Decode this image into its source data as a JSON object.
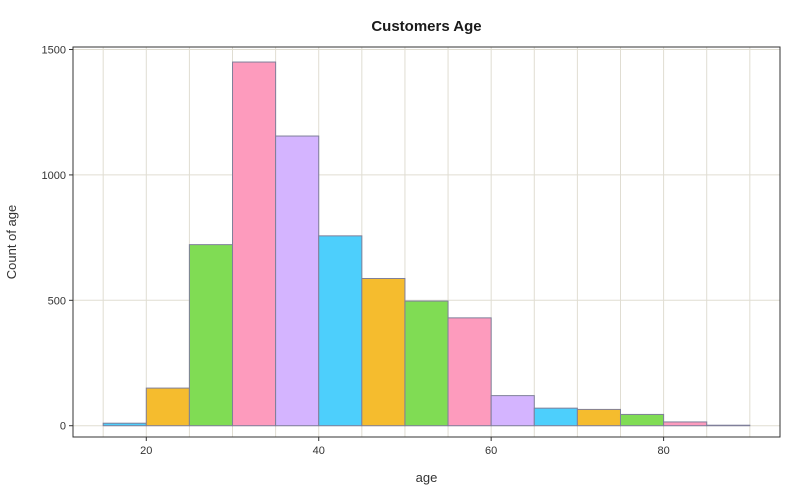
{
  "chart_data": {
    "type": "bar",
    "title": "Customers Age",
    "xlabel": "age",
    "ylabel": "Count of age",
    "bin_width": 5,
    "bins": [
      {
        "start": 15,
        "end": 20,
        "count": 10,
        "color": "#4dcffc"
      },
      {
        "start": 20,
        "end": 25,
        "count": 150,
        "color": "#f5bc2e"
      },
      {
        "start": 25,
        "end": 30,
        "count": 722,
        "color": "#80dc54"
      },
      {
        "start": 30,
        "end": 35,
        "count": 1450,
        "color": "#fd9bbd"
      },
      {
        "start": 35,
        "end": 40,
        "count": 1155,
        "color": "#d4b4ff"
      },
      {
        "start": 40,
        "end": 45,
        "count": 757,
        "color": "#4dcffc"
      },
      {
        "start": 45,
        "end": 50,
        "count": 587,
        "color": "#f5bc2e"
      },
      {
        "start": 50,
        "end": 55,
        "count": 497,
        "color": "#80dc54"
      },
      {
        "start": 55,
        "end": 60,
        "count": 430,
        "color": "#fd9bbd"
      },
      {
        "start": 60,
        "end": 65,
        "count": 120,
        "color": "#d4b4ff"
      },
      {
        "start": 65,
        "end": 70,
        "count": 70,
        "color": "#4dcffc"
      },
      {
        "start": 70,
        "end": 75,
        "count": 65,
        "color": "#f5bc2e"
      },
      {
        "start": 75,
        "end": 80,
        "count": 45,
        "color": "#80dc54"
      },
      {
        "start": 80,
        "end": 85,
        "count": 15,
        "color": "#fd9bbd"
      },
      {
        "start": 85,
        "end": 90,
        "count": 2,
        "color": "#d4b4ff"
      }
    ],
    "xlim": [
      11.5,
      93.5
    ],
    "ylim": [
      -45,
      1510
    ],
    "x_ticks": [
      20,
      40,
      60,
      80
    ],
    "y_ticks": [
      0,
      500,
      1000,
      1500
    ],
    "grid": true,
    "legend": "none"
  }
}
